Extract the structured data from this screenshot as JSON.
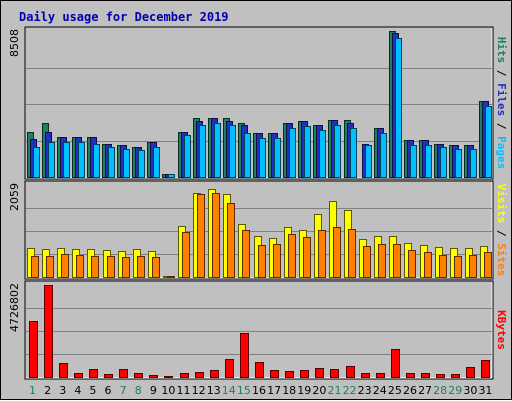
{
  "chart_data": {
    "type": "bar",
    "title": "Daily usage for December 2019",
    "x": [
      "1",
      "2",
      "3",
      "4",
      "5",
      "6",
      "7",
      "8",
      "9",
      "10",
      "11",
      "12",
      "13",
      "14",
      "15",
      "16",
      "17",
      "18",
      "19",
      "20",
      "21",
      "22",
      "23",
      "24",
      "25",
      "26",
      "27",
      "28",
      "29",
      "30",
      "31"
    ],
    "weekend_days": [
      1,
      7,
      8,
      14,
      15,
      21,
      22,
      28,
      29
    ],
    "panels": [
      {
        "name": "hits-pages-files",
        "axis_max_label": "8508",
        "ymax": 8508,
        "legend": [
          "Hits",
          "Files",
          "Pages"
        ],
        "legend_separator": " / ",
        "series": [
          {
            "name": "Hits",
            "color": "#1f7f5f",
            "values": [
              2650,
              3150,
              2350,
              2350,
              2350,
              1950,
              1850,
              1750,
              2050,
              150,
              2650,
              3450,
              3450,
              3450,
              3150,
              2550,
              2550,
              3150,
              3250,
              3050,
              3350,
              3350,
              0,
              2850,
              8508,
              2150,
              2150,
              1950,
              1850,
              1850,
              4450
            ]
          },
          {
            "name": "Files",
            "color": "#2030c0",
            "values": [
              2200,
              2600,
              2350,
              2350,
              2350,
              1950,
              1850,
              1750,
              2050,
              150,
              2650,
              3250,
              3450,
              3250,
              3050,
              2550,
              2550,
              3150,
              3250,
              3050,
              3350,
              3150,
              1950,
              2850,
              8400,
              2150,
              2150,
              1950,
              1850,
              1850,
              4450
            ]
          },
          {
            "name": "Pages",
            "color": "#00c0ff",
            "values": [
              1750,
              2050,
              2050,
              2050,
              1950,
              1750,
              1650,
              1550,
              1750,
              150,
              2450,
              3050,
              3150,
              3050,
              2550,
              2250,
              2250,
              2850,
              2950,
              2750,
              3050,
              2850,
              1850,
              2550,
              8100,
              1850,
              1850,
              1750,
              1650,
              1650,
              4150
            ]
          }
        ]
      },
      {
        "name": "visits-sites",
        "axis_max_label": "2059",
        "ymax": 2059,
        "legend": [
          "Visits",
          "Sites"
        ],
        "legend_separator": " / ",
        "series": [
          {
            "name": "Visits",
            "color": "#ffff00",
            "values": [
              660,
              620,
              640,
              620,
              620,
              610,
              590,
              620,
              590,
              30,
              1140,
              1890,
              1960,
              1860,
              1190,
              920,
              880,
              1120,
              1050,
              1400,
              1700,
              1500,
              860,
              920,
              920,
              760,
              720,
              670,
              640,
              660,
              690
            ]
          },
          {
            "name": "Sites",
            "color": "#ff8000",
            "values": [
              480,
              460,
              510,
              500,
              480,
              470,
              440,
              480,
              440,
              20,
              1000,
              1850,
              1870,
              1660,
              1050,
              710,
              730,
              960,
              890,
              1060,
              1120,
              1080,
              700,
              730,
              730,
              600,
              570,
              490,
              480,
              500,
              560
            ]
          }
        ]
      },
      {
        "name": "kbytes",
        "axis_max_label": "4726802",
        "ymax": 4726802,
        "legend": [
          "KBytes"
        ],
        "legend_separator": "",
        "series": [
          {
            "name": "KBytes",
            "color": "#ff0000",
            "values": [
              2880000,
              4726802,
              700000,
              180000,
              400000,
              150000,
              400000,
              190000,
              80000,
              40000,
              190000,
              270000,
              350000,
              940000,
              2280000,
              780000,
              360000,
              310000,
              380000,
              480000,
              420000,
              560000,
              180000,
              210000,
              1420000,
              190000,
              180000,
              170000,
              140000,
              500000,
              870000
            ]
          }
        ]
      }
    ]
  }
}
